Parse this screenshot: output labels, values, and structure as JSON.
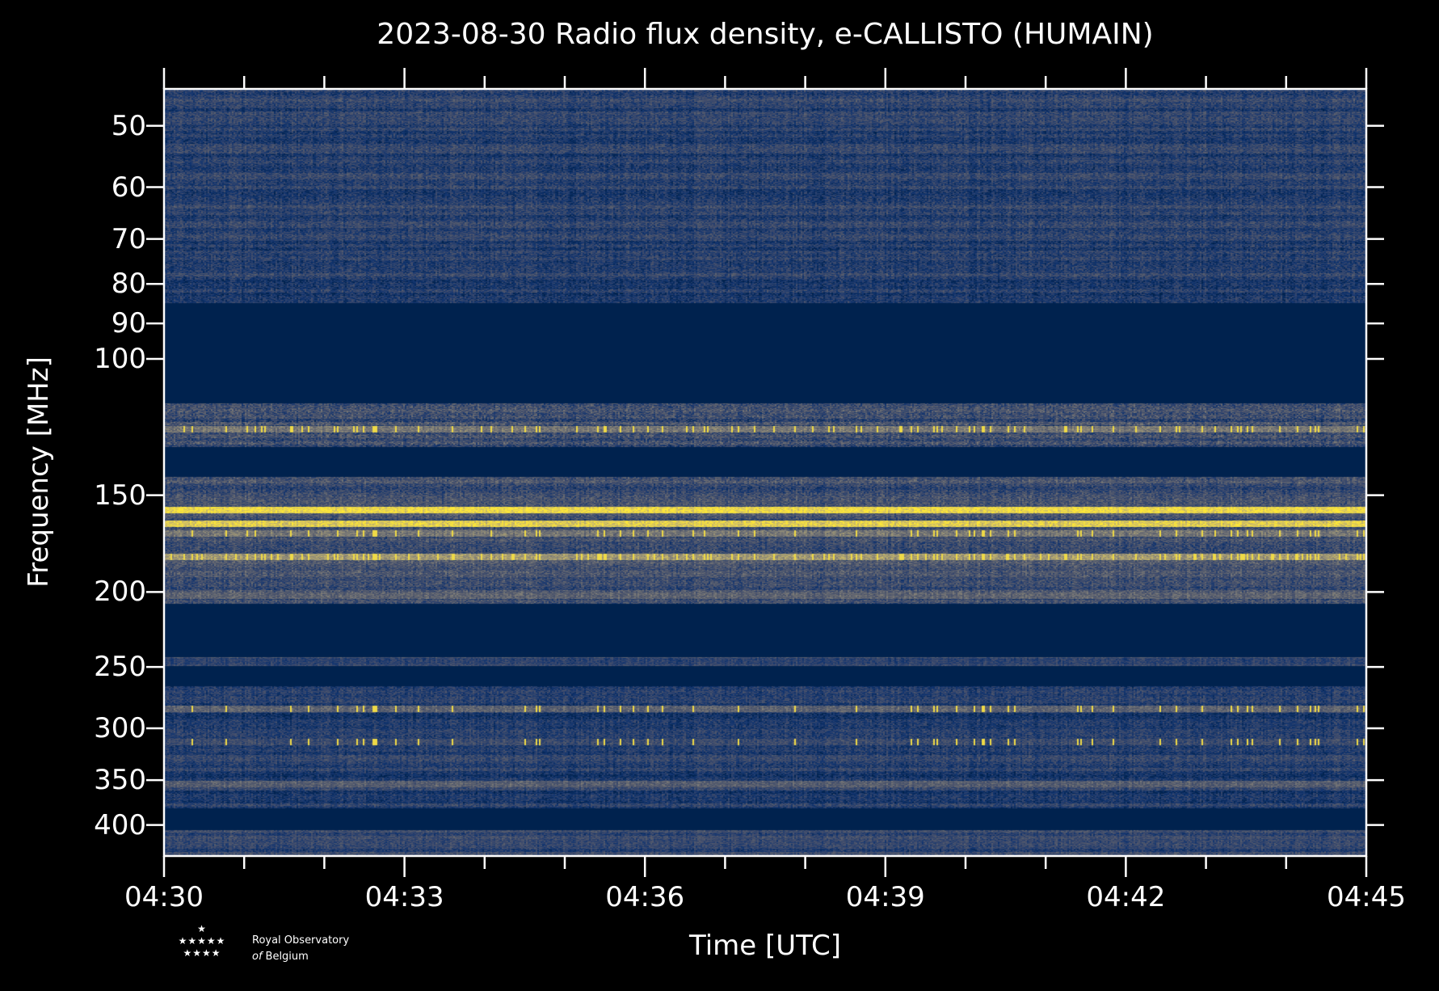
{
  "chart_data": {
    "type": "heatmap",
    "title": "2023-08-30 Radio flux density, e-CALLISTO (HUMAIN)",
    "xlabel": "Time [UTC]",
    "ylabel": "Frequency [MHz]",
    "x_range_minutes_after_0430": [
      0,
      15
    ],
    "xticks_major": [
      {
        "label": "04:30",
        "min": 0
      },
      {
        "label": "04:33",
        "min": 3
      },
      {
        "label": "04:36",
        "min": 6
      },
      {
        "label": "04:39",
        "min": 9
      },
      {
        "label": "04:42",
        "min": 12
      },
      {
        "label": "04:45",
        "min": 15
      }
    ],
    "xticks_minor_step_min": 1,
    "yscale": "log",
    "ylim": [
      44.8,
      438.6
    ],
    "yaxis_inverted": true,
    "yticks": [
      50,
      60,
      70,
      80,
      90,
      100,
      150,
      200,
      250,
      300,
      350,
      400
    ],
    "colormap": [
      "#00224e",
      "#123570",
      "#3b496c",
      "#575d6d",
      "#7c7b78",
      "#a59c74",
      "#d3c164",
      "#fee838"
    ],
    "bands_mhz": [
      {
        "lo": 44.8,
        "hi": 84.7,
        "level": 0.22,
        "noise": 0.14
      },
      {
        "lo": 84.7,
        "hi": 114,
        "level": 0.0,
        "noise": 0.0
      },
      {
        "lo": 114,
        "hi": 130,
        "level": 0.3,
        "noise": 0.18
      },
      {
        "lo": 130,
        "hi": 142,
        "level": 0.0,
        "noise": 0.0
      },
      {
        "lo": 142,
        "hi": 207,
        "level": 0.32,
        "noise": 0.16
      },
      {
        "lo": 207,
        "hi": 243,
        "level": 0.0,
        "noise": 0.0
      },
      {
        "lo": 243,
        "hi": 249,
        "level": 0.28,
        "noise": 0.1
      },
      {
        "lo": 249,
        "hi": 265,
        "level": 0.0,
        "noise": 0.0
      },
      {
        "lo": 265,
        "hi": 381,
        "level": 0.2,
        "noise": 0.13
      },
      {
        "lo": 381,
        "hi": 406,
        "level": 0.0,
        "noise": 0.0
      },
      {
        "lo": 406,
        "hi": 438.6,
        "level": 0.26,
        "noise": 0.12
      }
    ],
    "bright_lines_mhz": [
      {
        "f": 123,
        "level": 0.55,
        "spikes": 0.1
      },
      {
        "f": 156.7,
        "level": 0.95,
        "spikes": 0
      },
      {
        "f": 163,
        "level": 0.9,
        "spikes": 0
      },
      {
        "f": 168,
        "level": 0.55,
        "spikes": 0.06
      },
      {
        "f": 180,
        "level": 0.7,
        "spikes": 0.15
      },
      {
        "f": 202,
        "level": 0.45,
        "spikes": 0
      },
      {
        "f": 283,
        "level": 0.45,
        "spikes": 0.05
      },
      {
        "f": 312,
        "level": 0.3,
        "spikes": 0.05
      },
      {
        "f": 354,
        "level": 0.42,
        "spikes": 0
      }
    ]
  },
  "logo": {
    "line1": "Royal Observatory",
    "line2_italic": "of",
    "line2": "Belgium"
  }
}
